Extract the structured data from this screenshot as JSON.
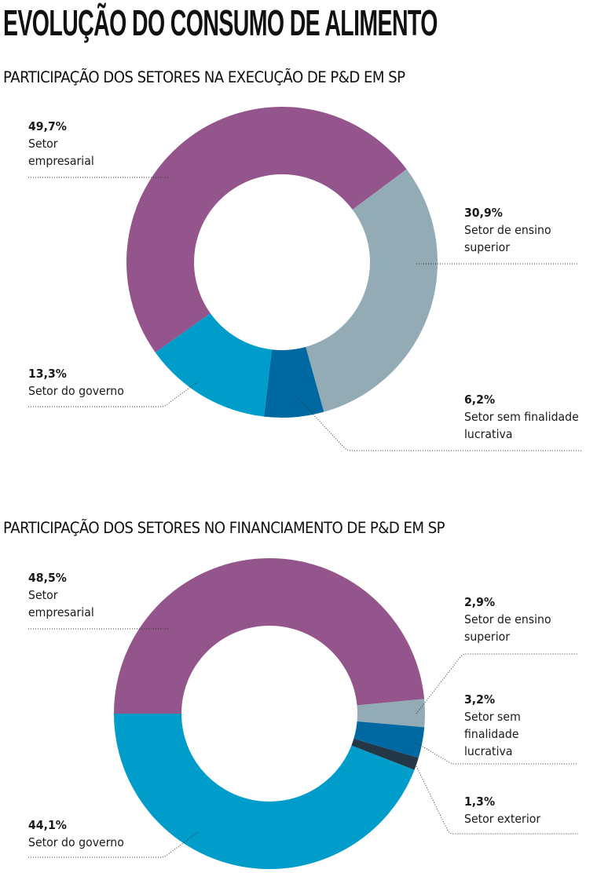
{
  "page": {
    "title": "EVOLUÇÃO DO CONSUMO DE ALIMENTO"
  },
  "colors": {
    "empresarial": "#93558B",
    "ensino_superior": "#93ABB5",
    "sem_finalidade": "#0069A2",
    "exterior": "#233746",
    "governo": "#009DCB"
  },
  "chart_data": [
    {
      "type": "pie",
      "variant": "donut",
      "title": "PARTICIPAÇÃO DOS SETORES NA EXECUÇÃO DE P&D EM SP",
      "unit": "%",
      "categories": [
        "Setor empresarial",
        "Setor de ensino superior",
        "Setor sem finalidade lucrativa",
        "Setor do governo"
      ],
      "values": [
        49.7,
        30.9,
        6.2,
        13.3
      ],
      "labels": [
        "49,7%",
        "30,9%",
        "6,2%",
        "13,3%"
      ],
      "names": [
        "Setor empresarial",
        "Setor de ensino superior",
        "Setor sem finalidade lucrativa",
        "Setor do governo"
      ],
      "color_keys": [
        "empresarial",
        "ensino_superior",
        "sem_finalidade",
        "governo"
      ],
      "start_angle_deg": 234.5,
      "direction": "clockwise"
    },
    {
      "type": "pie",
      "variant": "donut",
      "title": "PARTICIPAÇÃO DOS SETORES NO FINANCIAMENTO DE P&D EM SP",
      "unit": "%",
      "categories": [
        "Setor empresarial",
        "Setor de ensino superior",
        "Setor sem finalidade lucrativa",
        "Setor exterior",
        "Setor do governo"
      ],
      "values": [
        48.5,
        2.9,
        3.2,
        1.3,
        44.1
      ],
      "labels": [
        "48,5%",
        "2,9%",
        "3,2%",
        "1,3%",
        "44,1%"
      ],
      "names": [
        "Setor empresarial",
        "Setor de ensino superior",
        "Setor sem finalidade lucrativa",
        "Setor exterior",
        "Setor do governo"
      ],
      "color_keys": [
        "empresarial",
        "ensino_superior",
        "sem_finalidade",
        "exterior",
        "governo"
      ],
      "start_angle_deg": 270,
      "direction": "clockwise"
    }
  ],
  "labels": {
    "c1": {
      "empresarial": {
        "pct": "49,7%",
        "l1": "Setor",
        "l2": "empresarial"
      },
      "ensino": {
        "pct": "30,9%",
        "l1": "Setor de ensino",
        "l2": "superior"
      },
      "semfin": {
        "pct": "6,2%",
        "l1": "Setor sem finalidade",
        "l2": "lucrativa"
      },
      "governo": {
        "pct": "13,3%",
        "l1": "Setor do governo"
      }
    },
    "c2": {
      "empresarial": {
        "pct": "48,5%",
        "l1": "Setor",
        "l2": "empresarial"
      },
      "ensino": {
        "pct": "2,9%",
        "l1": "Setor de ensino",
        "l2": "superior"
      },
      "semfin": {
        "pct": "3,2%",
        "l1": "Setor sem",
        "l2": "finalidade",
        "l3": "lucrativa"
      },
      "exterior": {
        "pct": "1,3%",
        "l1": "Setor exterior"
      },
      "governo": {
        "pct": "44,1%",
        "l1": "Setor do governo"
      }
    }
  }
}
